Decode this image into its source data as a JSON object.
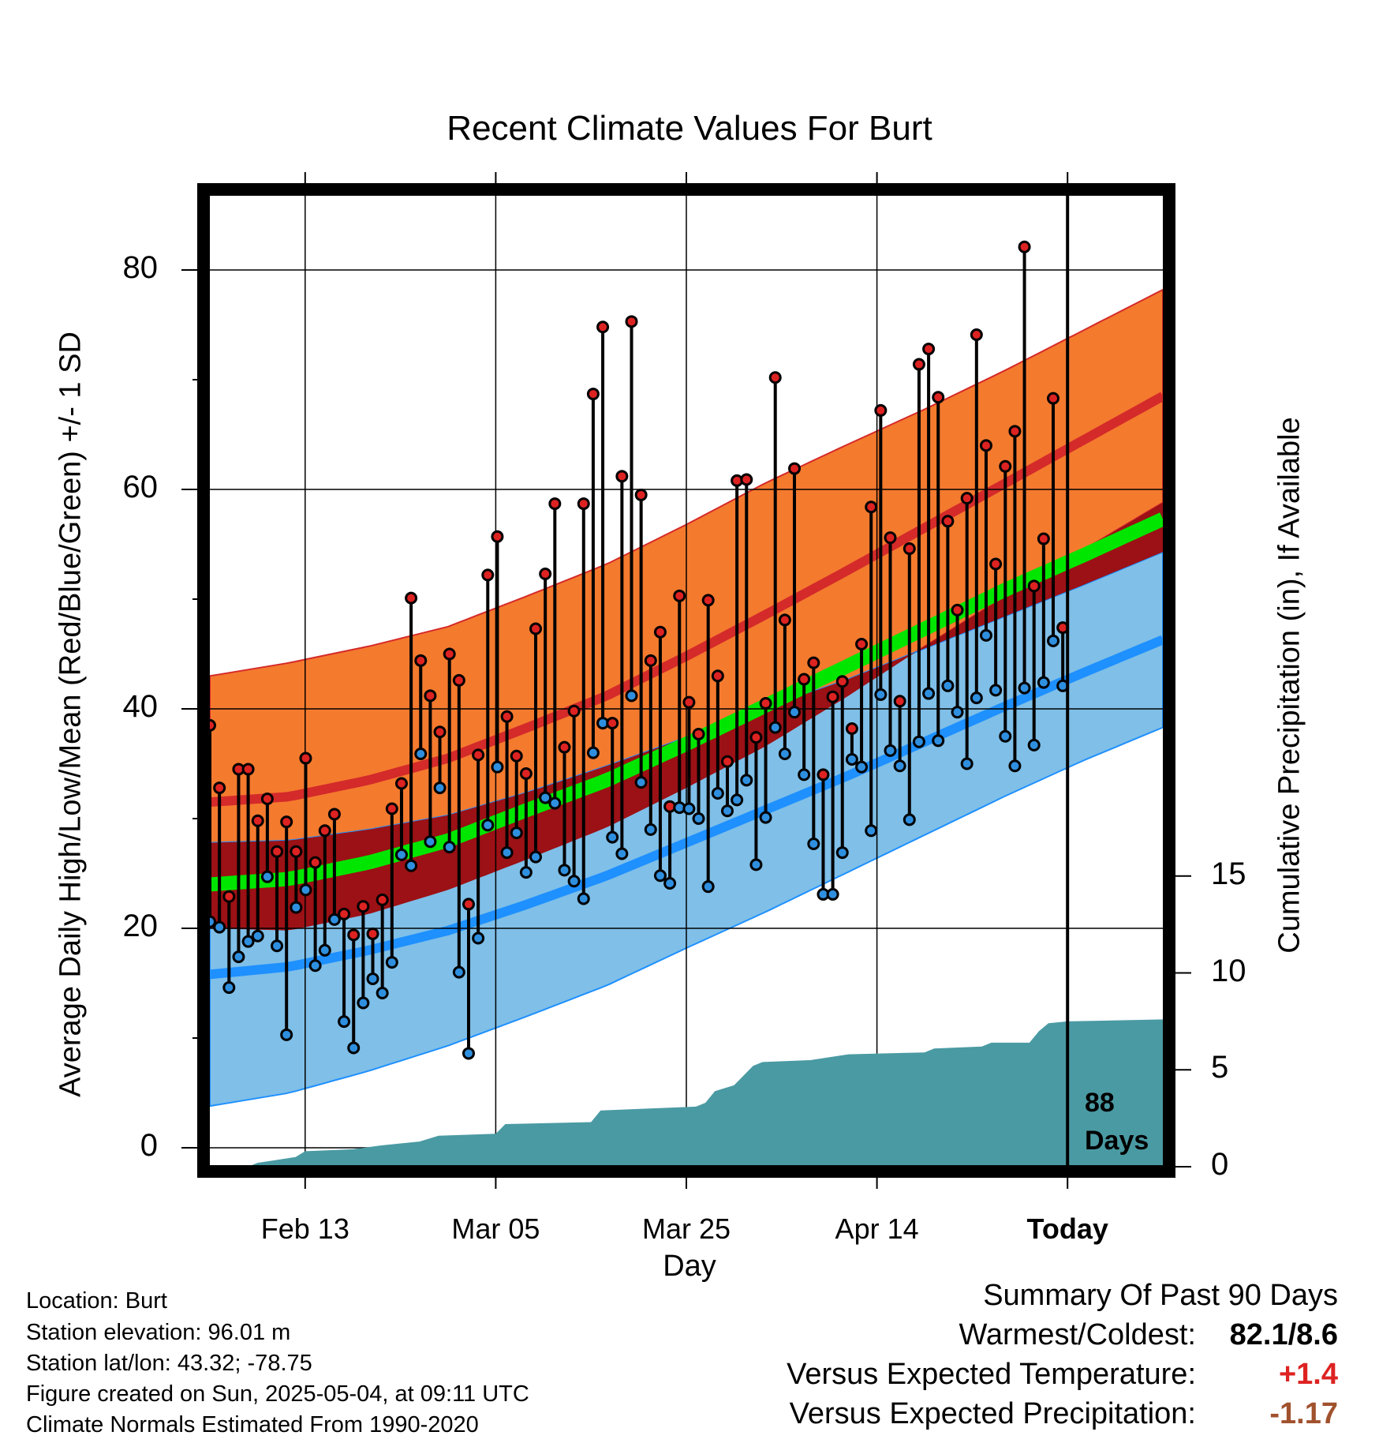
{
  "chart_data": {
    "type": "line",
    "title": "Recent Climate Values For Burt",
    "xlabel": "Day",
    "ylabel": "Average Daily High/Low/Mean (Red/Blue/Green) +/- 1 SD",
    "y2label": "Cumulative Precipitation (in), If Available",
    "x_range_days": [
      0,
      100
    ],
    "ylim": [
      -2,
      87
    ],
    "y2lim": [
      0,
      30
    ],
    "y_ticks": [
      "0",
      "20",
      "40",
      "60",
      "80"
    ],
    "y2_ticks": [
      "0",
      "5",
      "10",
      "15"
    ],
    "x_ticks": [
      {
        "day": 10,
        "label": "Feb 13"
      },
      {
        "day": 30,
        "label": "Mar 05"
      },
      {
        "day": 50,
        "label": "Mar 25"
      },
      {
        "day": 70,
        "label": "Apr 14"
      },
      {
        "day": 90,
        "label": "Today"
      }
    ],
    "today_day": 90,
    "days_label_1": "88",
    "days_label_2": "Days",
    "normals": {
      "high_mean": [
        31.5,
        32.0,
        33.5,
        35.5,
        38.3,
        41.2,
        44.8,
        48.6,
        52.5,
        56.5,
        60.5,
        64.5,
        68.5
      ],
      "high_sd": [
        11.5,
        12.2,
        12.2,
        12.0,
        12.0,
        12.0,
        12.0,
        12.0,
        11.5,
        10.8,
        10.3,
        10.0,
        9.7
      ],
      "low_mean": [
        15.8,
        16.5,
        18.0,
        19.8,
        22.2,
        24.8,
        27.8,
        30.8,
        33.8,
        37.0,
        40.2,
        43.3,
        46.3
      ],
      "low_sd": [
        12.0,
        11.5,
        11.0,
        10.5,
        10.2,
        10.0,
        9.6,
        9.3,
        8.8,
        8.5,
        8.2,
        8.0,
        8.0
      ],
      "mean": [
        24.0,
        24.5,
        26.0,
        28.0,
        30.8,
        33.5,
        36.8,
        40.3,
        43.8,
        47.3,
        50.8,
        54.0,
        57.3
      ]
    },
    "series": [
      {
        "name": "High",
        "color": "#dd2222",
        "values": [
          38.5,
          32.8,
          22.9,
          34.5,
          34.5,
          29.8,
          31.8,
          27.0,
          29.7,
          27.0,
          35.5,
          26.0,
          28.9,
          30.4,
          21.3,
          19.4,
          22.0,
          19.5,
          22.6,
          30.9,
          33.2,
          50.1,
          44.4,
          41.2,
          37.9,
          45.0,
          42.6,
          22.2,
          35.8,
          52.2,
          55.7,
          39.3,
          35.7,
          34.1,
          47.3,
          52.3,
          58.7,
          36.5,
          39.8,
          58.7,
          68.7,
          74.8,
          38.7,
          61.2,
          75.3,
          59.5,
          44.4,
          47.0,
          31.1,
          50.3,
          40.6,
          37.7,
          49.9,
          43.0,
          35.2,
          60.8,
          60.9,
          37.4,
          40.5,
          70.2,
          48.1,
          61.9,
          42.7,
          44.2,
          34.0,
          41.1,
          42.5,
          38.2,
          45.9,
          58.4,
          67.2,
          55.6,
          40.7,
          54.6,
          71.4,
          72.8,
          68.4,
          57.1,
          49.0,
          59.2,
          74.1,
          64.0,
          53.2,
          62.1,
          65.3,
          82.1,
          51.2,
          55.5,
          68.3,
          47.4
        ]
      },
      {
        "name": "Low",
        "color": "#2f8fdf",
        "values": [
          20.6,
          20.1,
          14.6,
          17.4,
          18.8,
          19.3,
          24.7,
          18.4,
          10.3,
          21.9,
          23.5,
          16.6,
          18.0,
          20.8,
          11.5,
          9.1,
          13.2,
          15.4,
          14.1,
          16.9,
          26.7,
          25.7,
          35.9,
          27.9,
          32.8,
          27.4,
          16.0,
          8.6,
          19.1,
          29.4,
          34.7,
          26.9,
          28.7,
          25.1,
          26.5,
          31.9,
          31.4,
          25.3,
          24.3,
          22.7,
          36.0,
          38.7,
          28.3,
          26.8,
          41.2,
          33.3,
          29.0,
          24.8,
          24.1,
          31.0,
          30.9,
          30.0,
          23.8,
          32.3,
          30.7,
          31.7,
          33.5,
          25.8,
          30.1,
          38.3,
          35.9,
          39.7,
          34.0,
          27.7,
          23.1,
          23.1,
          26.9,
          35.4,
          34.7,
          28.9,
          41.3,
          36.2,
          34.8,
          29.9,
          37.0,
          41.4,
          37.1,
          42.1,
          39.7,
          35.0,
          41.0,
          46.7,
          41.7,
          37.5,
          34.8,
          41.9,
          36.7,
          42.4,
          46.2,
          42.1
        ]
      }
    ],
    "precip_cumulative": [
      [
        0,
        0.0
      ],
      [
        4,
        0.0
      ],
      [
        5,
        0.2
      ],
      [
        9,
        0.5
      ],
      [
        10,
        0.8
      ],
      [
        15,
        0.9
      ],
      [
        18,
        1.1
      ],
      [
        22,
        1.3
      ],
      [
        24,
        1.6
      ],
      [
        30,
        1.7
      ],
      [
        31,
        2.2
      ],
      [
        40,
        2.3
      ],
      [
        41,
        2.9
      ],
      [
        51,
        3.1
      ],
      [
        52,
        3.3
      ],
      [
        53,
        3.9
      ],
      [
        55,
        4.2
      ],
      [
        57,
        5.2
      ],
      [
        58,
        5.4
      ],
      [
        63,
        5.5
      ],
      [
        67,
        5.8
      ],
      [
        75,
        5.9
      ],
      [
        76,
        6.1
      ],
      [
        81,
        6.2
      ],
      [
        82,
        6.4
      ],
      [
        86,
        6.4
      ],
      [
        87,
        7.0
      ],
      [
        88,
        7.4
      ],
      [
        90,
        7.5
      ],
      [
        100,
        7.6
      ]
    ]
  },
  "footer": {
    "location": "Location: Burt",
    "elevation": "Station elevation: 96.01 m",
    "latlon": "Station lat/lon: 43.32; -78.75",
    "created": "Figure created on Sun, 2025-05-04, at 09:11 UTC",
    "normals_note": "Climate Normals Estimated From 1990-2020"
  },
  "summary": {
    "heading": "Summary Of Past 90 Days",
    "warm_cold_label": "Warmest/Coldest:",
    "warm_cold_value": "82.1/8.6",
    "temp_label": "Versus Expected Temperature:",
    "temp_value": "+1.4",
    "temp_color": "#dd2222",
    "precip_label": "Versus Expected Precipitation:",
    "precip_value": "-1.17",
    "precip_color": "#a0522d"
  },
  "colors": {
    "high_band": "#f47a2e",
    "high_line": "#d42a2a",
    "low_band": "#7fbfe8",
    "low_line": "#1e90ff",
    "overlap": "#9b1115",
    "mean_line": "#00e600",
    "precip_fill": "#4a9aa3"
  }
}
